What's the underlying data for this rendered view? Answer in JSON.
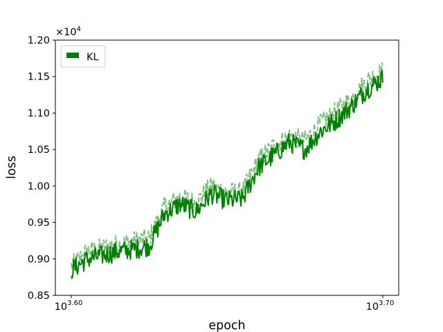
{
  "chart_data": {
    "type": "line",
    "xlabel": "epoch",
    "ylabel": "loss",
    "x_scale": "log10",
    "xlim": [
      3.6,
      3.7
    ],
    "ylim": [
      0.85,
      1.2
    ],
    "y_multiplier": "×10",
    "y_multiplier_exponent": "4",
    "x_tick_base": "10",
    "x_ticks": [
      {
        "exponent": 3.6,
        "label": "3.60"
      },
      {
        "exponent": 3.7,
        "label": "3.70"
      }
    ],
    "y_ticks": [
      {
        "value": 0.85,
        "label": "0.85"
      },
      {
        "value": 0.9,
        "label": "0.90"
      },
      {
        "value": 0.95,
        "label": "0.95"
      },
      {
        "value": 1.0,
        "label": "1.00"
      },
      {
        "value": 1.05,
        "label": "1.05"
      },
      {
        "value": 1.1,
        "label": "1.10"
      },
      {
        "value": 1.15,
        "label": "1.15"
      },
      {
        "value": 1.2,
        "label": "1.20"
      }
    ],
    "grid": false,
    "legend": {
      "placement": "top-left",
      "entries": [
        "KL"
      ]
    },
    "colors": {
      "main": "#008000",
      "dashed": "#7fbf7f"
    },
    "series": [
      {
        "name": "KL",
        "style": "solid",
        "x_log10": [
          3.6,
          3.605,
          3.61,
          3.615,
          3.62,
          3.625,
          3.63,
          3.635,
          3.64,
          3.645,
          3.65,
          3.655,
          3.66,
          3.665,
          3.67,
          3.675,
          3.68,
          3.685,
          3.69,
          3.695,
          3.7
        ],
        "y": [
          0.885,
          0.899,
          0.905,
          0.91,
          0.913,
          0.918,
          0.962,
          0.975,
          0.965,
          0.989,
          0.98,
          0.982,
          1.025,
          1.042,
          1.06,
          1.05,
          1.075,
          1.09,
          1.11,
          1.133,
          1.148
        ]
      },
      {
        "style": "dashed",
        "x_log10": [
          3.6,
          3.605,
          3.61,
          3.615,
          3.62,
          3.625,
          3.63,
          3.635,
          3.64,
          3.645,
          3.65,
          3.655,
          3.66,
          3.665,
          3.67,
          3.675,
          3.68,
          3.685,
          3.69,
          3.695,
          3.7
        ],
        "y": [
          0.89,
          0.91,
          0.915,
          0.92,
          0.924,
          0.928,
          0.972,
          0.985,
          0.977,
          1.0,
          0.991,
          0.992,
          1.035,
          1.055,
          1.068,
          1.062,
          1.085,
          1.102,
          1.12,
          1.145,
          1.157
        ]
      }
    ]
  }
}
